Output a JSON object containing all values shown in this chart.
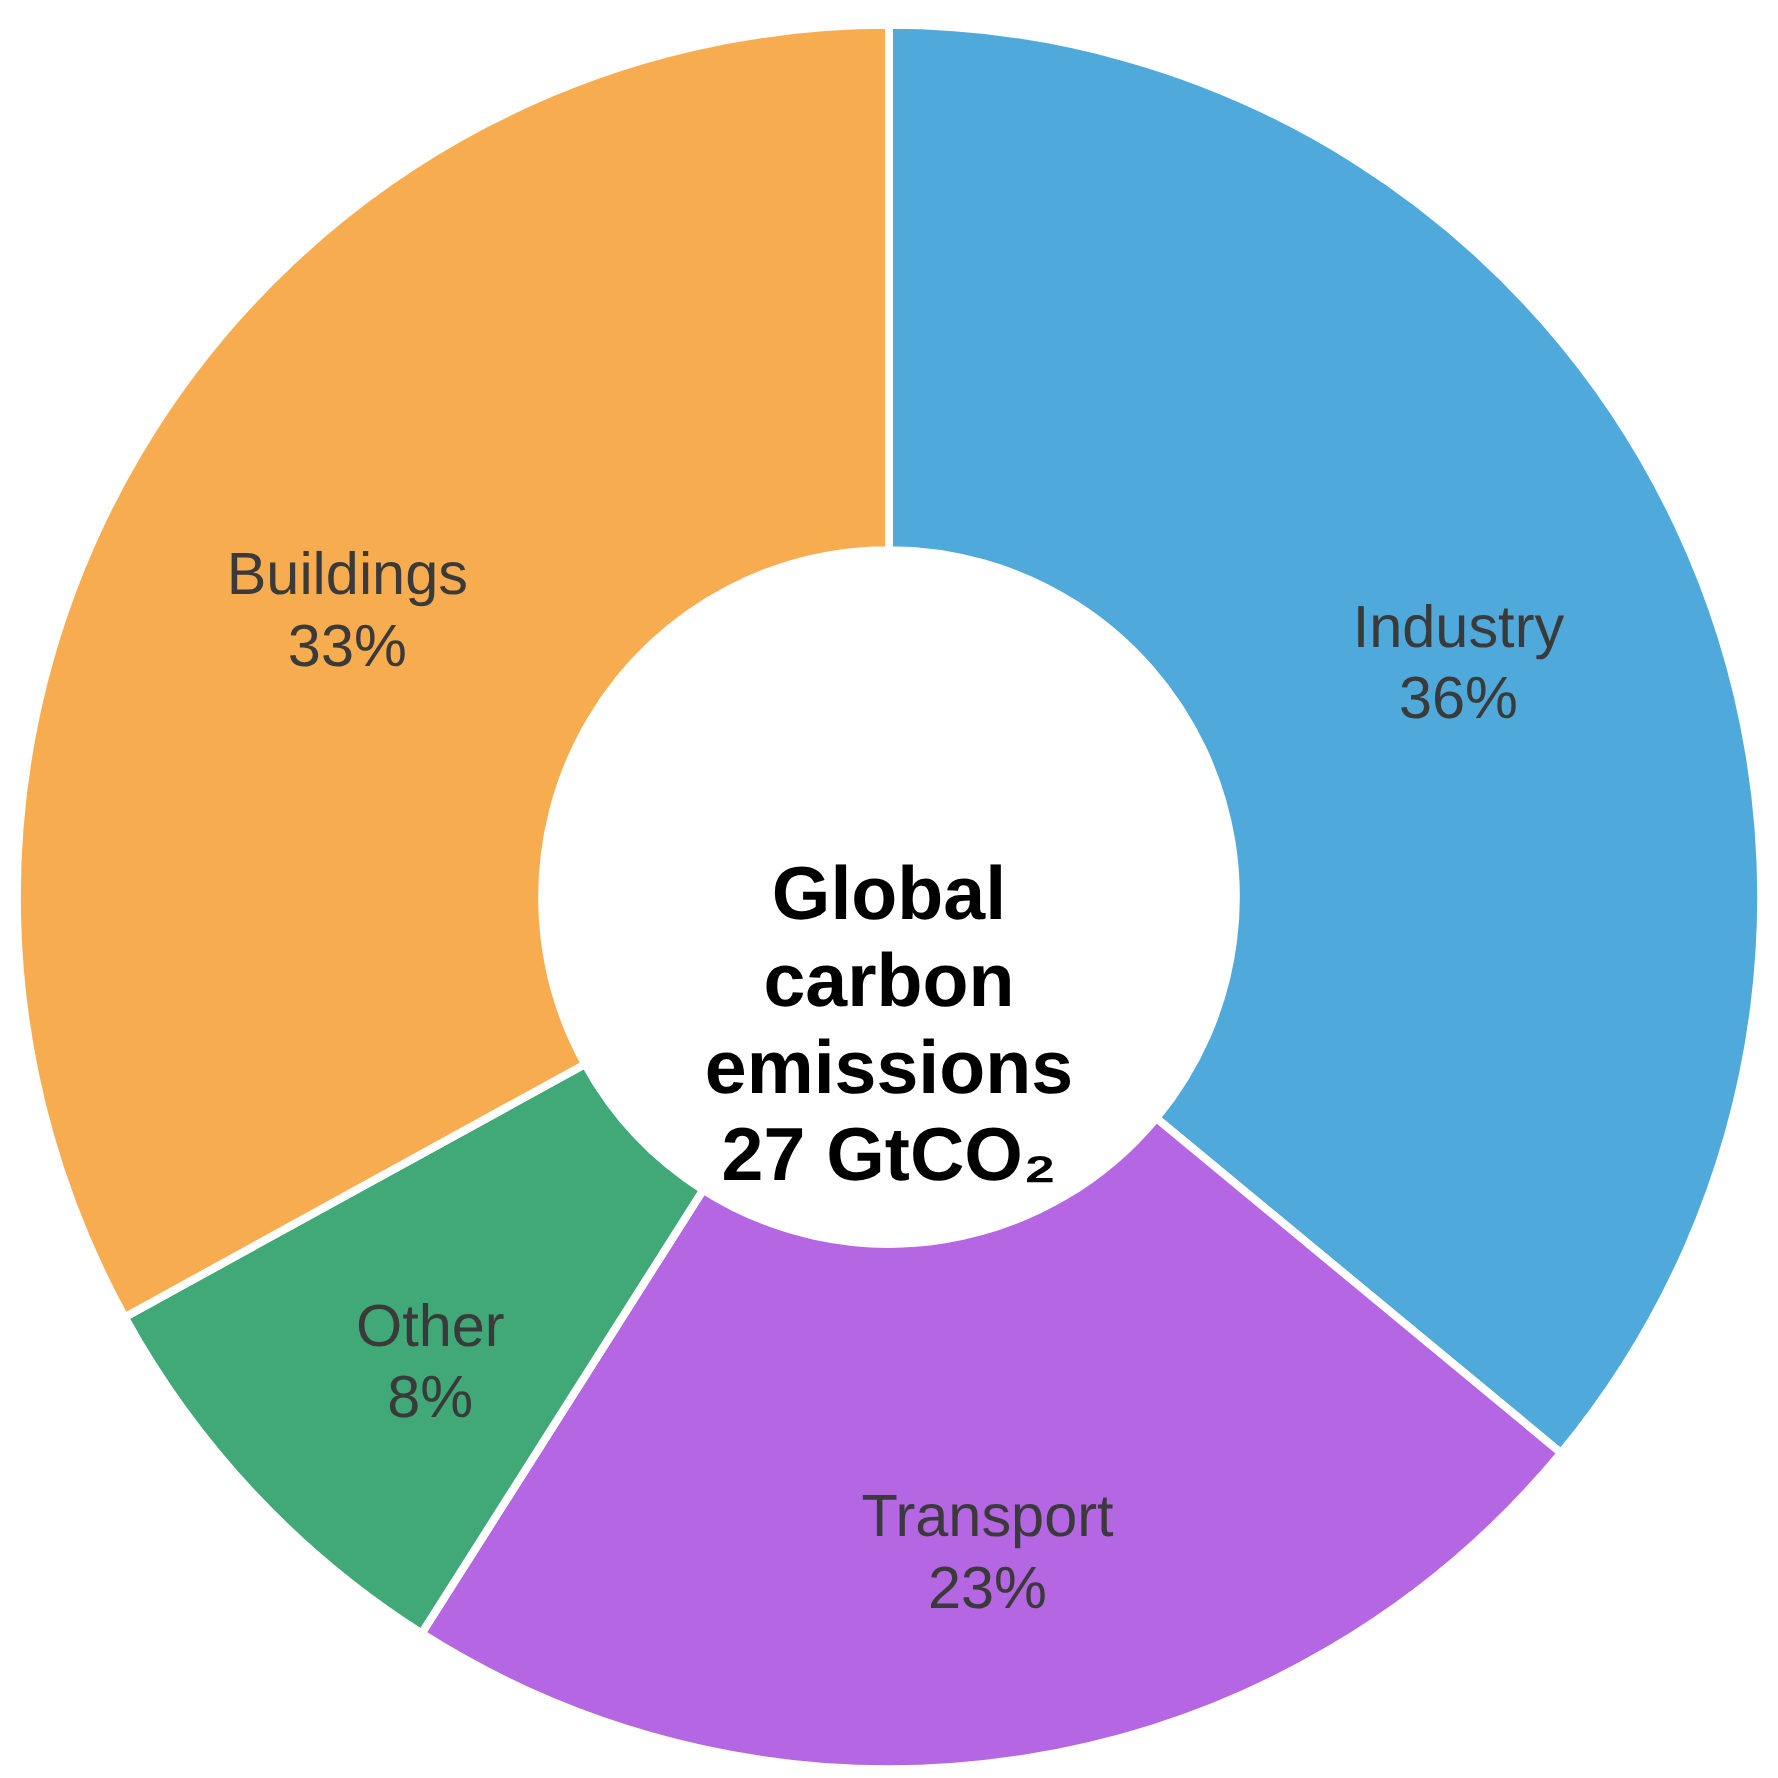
{
  "chart_data": {
    "type": "donut",
    "title": "Global\ncarbon\nemissions\n27 GtCO₂",
    "categories": [
      "Industry",
      "Transport",
      "Other",
      "Buildings"
    ],
    "values": [
      36,
      23,
      8,
      33
    ],
    "value_labels": [
      "36%",
      "23%",
      "8%",
      "33%"
    ],
    "colors": [
      "#4fa9da",
      "#b566e2",
      "#40a977",
      "#f8ac50"
    ],
    "legend": false
  }
}
